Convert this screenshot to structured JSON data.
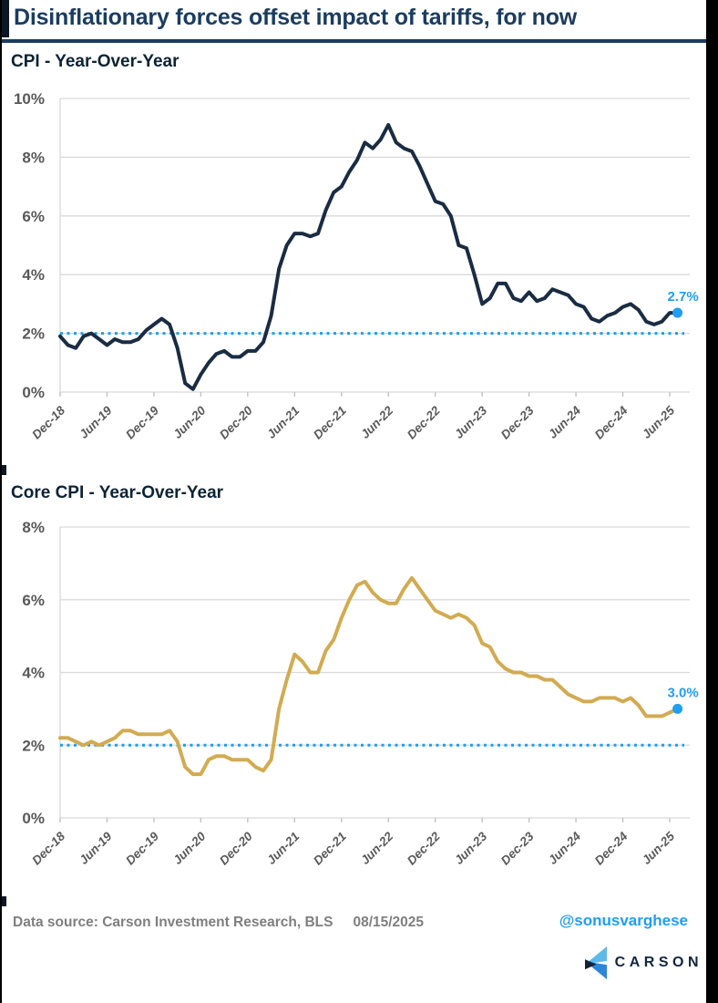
{
  "page": {
    "title": "Disinflationary forces offset impact of tariffs, for now"
  },
  "footer": {
    "data_source": "Data source: Carson Investment Research, BLS",
    "date": "08/15/2025",
    "handle": "@sonusvarghese",
    "logo_text": "CARSON"
  },
  "colors": {
    "title_navy": "#1b3c5f",
    "line_navy": "#1a2c42",
    "line_gold": "#d2ab51",
    "accent_blue": "#1f9ef2",
    "grid_gray": "#d9d9d9",
    "tick_gray": "#bfbfbf",
    "axis_label_gray": "#595959",
    "footer_gray": "#7f7f7f",
    "logo_light_blue": "#5fb8ea",
    "logo_mid_blue": "#2e86d8",
    "logo_navy": "#142238"
  },
  "chart_data": [
    {
      "type": "line",
      "title": "CPI - Year-Over-Year",
      "x_start": "Dec-18",
      "x_end": "Jul-25",
      "frequency": "monthly",
      "x_tick_labels": [
        "Dec-18",
        "Jun-19",
        "Dec-19",
        "Jun-20",
        "Dec-20",
        "Jun-21",
        "Dec-21",
        "Jun-22",
        "Dec-22",
        "Jun-23",
        "Dec-23",
        "Jun-24",
        "Dec-24",
        "Jun-25"
      ],
      "months_per_tick": 6,
      "ylim": [
        0,
        10
      ],
      "ytick_step": 2,
      "yticks": [
        "0%",
        "2%",
        "4%",
        "6%",
        "8%",
        "10%"
      ],
      "grid": true,
      "legend": "none",
      "line_color": "#1a2c42",
      "reference_line": {
        "value": 2,
        "style": "dotted",
        "color": "#1f9ef2"
      },
      "end_label": "2.7%",
      "end_label_color": "#1f9ef2",
      "values": [
        1.9,
        1.6,
        1.5,
        1.9,
        2.0,
        1.8,
        1.6,
        1.8,
        1.7,
        1.7,
        1.8,
        2.1,
        2.3,
        2.5,
        2.3,
        1.5,
        0.3,
        0.1,
        0.6,
        1.0,
        1.3,
        1.4,
        1.2,
        1.2,
        1.4,
        1.4,
        1.7,
        2.6,
        4.2,
        5.0,
        5.4,
        5.4,
        5.3,
        5.4,
        6.2,
        6.8,
        7.0,
        7.5,
        7.9,
        8.5,
        8.3,
        8.6,
        9.1,
        8.5,
        8.3,
        8.2,
        7.7,
        7.1,
        6.5,
        6.4,
        6.0,
        5.0,
        4.9,
        4.0,
        3.0,
        3.2,
        3.7,
        3.7,
        3.2,
        3.1,
        3.4,
        3.1,
        3.2,
        3.5,
        3.4,
        3.3,
        3.0,
        2.9,
        2.5,
        2.4,
        2.6,
        2.7,
        2.9,
        3.0,
        2.8,
        2.4,
        2.3,
        2.4,
        2.7,
        2.7
      ]
    },
    {
      "type": "line",
      "title": "Core CPI - Year-Over-Year",
      "x_start": "Dec-18",
      "x_end": "Jul-25",
      "frequency": "monthly",
      "x_tick_labels": [
        "Dec-18",
        "Jun-19",
        "Dec-19",
        "Jun-20",
        "Dec-20",
        "Jun-21",
        "Dec-21",
        "Jun-22",
        "Dec-22",
        "Jun-23",
        "Dec-23",
        "Jun-24",
        "Dec-24",
        "Jun-25"
      ],
      "months_per_tick": 6,
      "ylim": [
        0,
        8
      ],
      "ytick_step": 2,
      "yticks": [
        "0%",
        "2%",
        "4%",
        "6%",
        "8%"
      ],
      "grid": true,
      "legend": "none",
      "line_color": "#d2ab51",
      "reference_line": {
        "value": 2,
        "style": "dotted",
        "color": "#1f9ef2"
      },
      "end_label": "3.0%",
      "end_label_color": "#1f9ef2",
      "values": [
        2.2,
        2.2,
        2.1,
        2.0,
        2.1,
        2.0,
        2.1,
        2.2,
        2.4,
        2.4,
        2.3,
        2.3,
        2.3,
        2.3,
        2.4,
        2.1,
        1.4,
        1.2,
        1.2,
        1.6,
        1.7,
        1.7,
        1.6,
        1.6,
        1.6,
        1.4,
        1.3,
        1.6,
        3.0,
        3.8,
        4.5,
        4.3,
        4.0,
        4.0,
        4.6,
        4.9,
        5.5,
        6.0,
        6.4,
        6.5,
        6.2,
        6.0,
        5.9,
        5.9,
        6.3,
        6.6,
        6.3,
        6.0,
        5.7,
        5.6,
        5.5,
        5.6,
        5.5,
        5.3,
        4.8,
        4.7,
        4.3,
        4.1,
        4.0,
        4.0,
        3.9,
        3.9,
        3.8,
        3.8,
        3.6,
        3.4,
        3.3,
        3.2,
        3.2,
        3.3,
        3.3,
        3.3,
        3.2,
        3.3,
        3.1,
        2.8,
        2.8,
        2.8,
        2.9,
        3.0
      ]
    }
  ]
}
